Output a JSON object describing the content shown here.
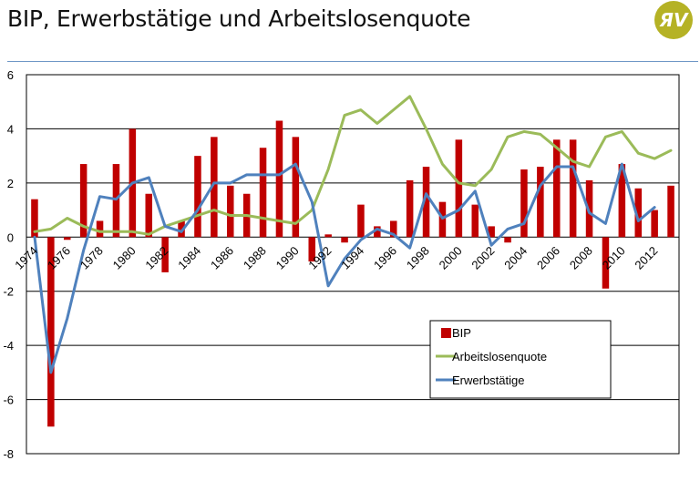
{
  "slide": {
    "title": "BIP, Erwerbstätige und Arbeitslosenquote",
    "logo_text": "ЯV",
    "logo_color": "#b5b225"
  },
  "chart_data": {
    "type": "bar",
    "x": [
      1974,
      1975,
      1976,
      1977,
      1978,
      1979,
      1980,
      1981,
      1982,
      1983,
      1984,
      1985,
      1986,
      1987,
      1988,
      1989,
      1990,
      1991,
      1992,
      1993,
      1994,
      1995,
      1996,
      1997,
      1998,
      1999,
      2000,
      2001,
      2002,
      2003,
      2004,
      2005,
      2006,
      2007,
      2008,
      2009,
      2010,
      2011,
      2012,
      2013
    ],
    "x_tick_labels": [
      "1974",
      "1976",
      "1978",
      "1980",
      "1982",
      "1984",
      "1986",
      "1988",
      "1990",
      "1992",
      "1994",
      "1996",
      "1998",
      "2000",
      "2002",
      "2004",
      "2006",
      "2008",
      "2010",
      "2012"
    ],
    "ylim": [
      -8,
      6
    ],
    "y_ticks": [
      -8,
      -6,
      -4,
      -2,
      0,
      2,
      4,
      6
    ],
    "grid": "horizontal",
    "legend_position": "lower-right",
    "series": [
      {
        "name": "BIP",
        "kind": "bar",
        "color": "#c00000",
        "values": [
          1.4,
          -7.0,
          -0.1,
          2.7,
          0.6,
          2.7,
          4.0,
          1.6,
          -1.3,
          0.6,
          3.0,
          3.7,
          1.9,
          1.6,
          3.3,
          4.3,
          3.7,
          -0.9,
          0.1,
          -0.2,
          1.2,
          0.4,
          0.6,
          2.1,
          2.6,
          1.3,
          3.6,
          1.2,
          0.4,
          -0.2,
          2.5,
          2.6,
          3.6,
          3.6,
          2.1,
          -1.9,
          2.7,
          1.8,
          1.0,
          1.9
        ]
      },
      {
        "name": "Arbeitslosenquote",
        "kind": "line",
        "color": "#9bbb59",
        "values": [
          0.2,
          0.3,
          0.7,
          0.4,
          0.2,
          0.2,
          0.2,
          0.1,
          0.4,
          0.6,
          0.8,
          1.0,
          0.8,
          0.8,
          0.7,
          0.6,
          0.5,
          1.0,
          2.5,
          4.5,
          4.7,
          4.2,
          4.7,
          5.2,
          4.0,
          2.7,
          2.0,
          1.9,
          2.5,
          3.7,
          3.9,
          3.8,
          3.3,
          2.8,
          2.6,
          3.7,
          3.9,
          3.1,
          2.9,
          3.2
        ]
      },
      {
        "name": "Erwerbstätige",
        "kind": "line",
        "color": "#4f81bd",
        "values": [
          0.0,
          -5.0,
          -3.0,
          -0.5,
          1.5,
          1.4,
          2.0,
          2.2,
          0.4,
          0.2,
          1.0,
          2.0,
          2.0,
          2.3,
          2.3,
          2.3,
          2.7,
          1.3,
          -1.8,
          -0.8,
          -0.1,
          0.3,
          0.1,
          -0.4,
          1.6,
          0.7,
          1.0,
          1.7,
          -0.3,
          0.3,
          0.5,
          1.9,
          2.6,
          2.6,
          0.9,
          0.5,
          2.7,
          0.6,
          1.1,
          null
        ]
      }
    ]
  }
}
